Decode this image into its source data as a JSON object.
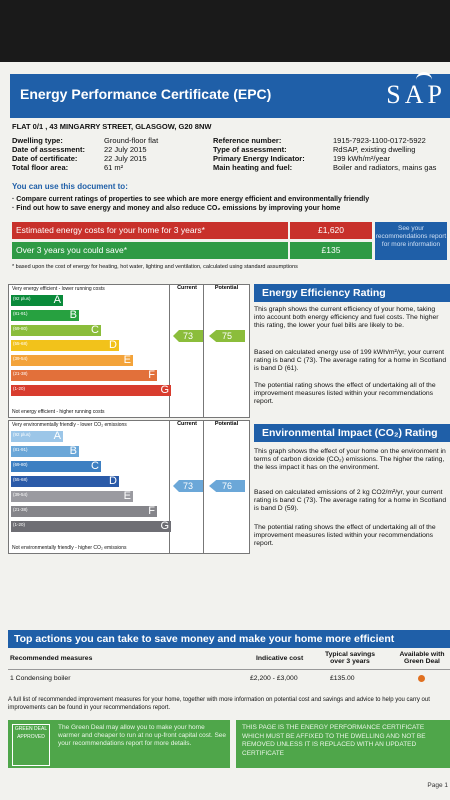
{
  "header": {
    "title": "Energy Performance Certificate (EPC)",
    "logo": "SAP"
  },
  "address": "FLAT 0/1 , 43 MINGARRY STREET, GLASGOW, G20 8NW",
  "details_left": [
    {
      "label": "Dwelling type:",
      "value": "Ground-floor flat"
    },
    {
      "label": "Date of assessment:",
      "value": "22 July 2015"
    },
    {
      "label": "Date of certificate:",
      "value": "22 July 2015"
    },
    {
      "label": "Total floor area:",
      "value": "61 m²"
    }
  ],
  "details_right": [
    {
      "label": "Reference number:",
      "value": "1915-7923-1100-0172-5922"
    },
    {
      "label": "Type of assessment:",
      "value": "RdSAP, existing dwelling"
    },
    {
      "label": "Primary Energy Indicator:",
      "value": "199 kWh/m²/year"
    },
    {
      "label": "Main heating and fuel:",
      "value": "Boiler and radiators, mains gas"
    }
  ],
  "use_heading": "You can use this document to:",
  "bullets": [
    "Compare current ratings of properties to see which are more energy efficient and environmentally friendly",
    "Find out how to save energy and money and also reduce CO₂ emissions by improving your home"
  ],
  "costs": {
    "estimated_label": "Estimated energy costs for your home for 3 years*",
    "estimated_value": "£1,620",
    "save_label": "Over 3 years you could save*",
    "save_value": "£135",
    "see_link": "See your recommendations report for more information",
    "footnote": "* based upon the cost of energy for heating, hot water, lighting and ventilation, calculated using standard assumptions"
  },
  "ee_chart": {
    "top_label": "Very energy efficient - lower running costs",
    "bottom_label": "Not energy efficient - higher running costs",
    "col_current": "Current",
    "col_potential": "Potential",
    "bands": [
      {
        "range": "(92 plus)",
        "letter": "A",
        "color": "#0a8a3a"
      },
      {
        "range": "(81-91)",
        "letter": "B",
        "color": "#27a140"
      },
      {
        "range": "(69-80)",
        "letter": "C",
        "color": "#8bbd3b"
      },
      {
        "range": "(55-68)",
        "letter": "D",
        "color": "#f2c21b"
      },
      {
        "range": "(39-54)",
        "letter": "E",
        "color": "#f3a33a"
      },
      {
        "range": "(21-38)",
        "letter": "F",
        "color": "#e2703a"
      },
      {
        "range": "(1-20)",
        "letter": "G",
        "color": "#d83c2e"
      }
    ],
    "current": "73",
    "potential": "75"
  },
  "ei_chart": {
    "top_label": "Very environmentally friendly - lower CO₂ emissions",
    "bottom_label": "Not environmentally friendly - higher CO₂ emissions",
    "col_current": "Current",
    "col_potential": "Potential",
    "bands": [
      {
        "range": "(92 plus)",
        "letter": "A",
        "color": "#9cc6e8"
      },
      {
        "range": "(81-91)",
        "letter": "B",
        "color": "#6ba7d8"
      },
      {
        "range": "(69-80)",
        "letter": "C",
        "color": "#3d7fc2"
      },
      {
        "range": "(55-68)",
        "letter": "D",
        "color": "#2a5aa8"
      },
      {
        "range": "(39-54)",
        "letter": "E",
        "color": "#9a9aa0"
      },
      {
        "range": "(21-38)",
        "letter": "F",
        "color": "#85858a"
      },
      {
        "range": "(1-20)",
        "letter": "G",
        "color": "#6e6e74"
      }
    ],
    "current": "73",
    "potential": "76"
  },
  "ee_section": {
    "title": "Energy Efficiency Rating",
    "p1": "This graph shows the current efficiency of your home, taking into account both energy efficiency and fuel costs. The higher this rating, the lower your fuel bills are likely to be.",
    "p2": "Based on calculated energy use of 199 kWh/m²/yr, your current rating is band C (73). The average rating for a home in Scotland is band D (61).",
    "p3": "The potential rating shows the effect of undertaking all of the improvement measures listed within your recommendations report."
  },
  "ei_section": {
    "title": "Environmental Impact (CO₂) Rating",
    "p1": "This graph shows the effect of your home on the environment in terms of carbon dioxide (CO₂) emissions. The higher the rating, the less impact it has on the environment.",
    "p2": "Based on calculated emissions of 2 kg CO2/m²/yr, your current rating is band C (73). The average rating for a home in Scotland is band D (59).",
    "p3": "The potential rating shows the effect of undertaking all of the improvement measures listed within your recommendations report."
  },
  "top_actions": {
    "title": "Top actions you can take to save money and make your home more efficient",
    "headers": [
      "Recommended measures",
      "Indicative cost",
      "Typical savings over 3 years",
      "Available with Green Deal"
    ],
    "rows": [
      {
        "measure": "1 Condensing boiler",
        "cost": "£2,200 - £3,000",
        "savings": "£135.00"
      }
    ]
  },
  "full_list": "A full list of recommended improvement measures for your home, together with more information on potential cost and savings and advice to help you carry out improvements can be found in your recommendations report.",
  "green_deal": {
    "logo": "GREEN DEAL APPROVED",
    "text": "The Green Deal may allow you to make your home warmer and cheaper to run at no up-front capital cost. See your recommendations report for more details."
  },
  "notice": "THIS PAGE IS THE ENERGY PERFORMANCE CERTIFICATE WHICH MUST BE AFFIXED TO THE DWELLING AND NOT BE REMOVED UNLESS IT IS REPLACED WITH AN UPDATED CERTIFICATE",
  "page": "Page 1"
}
